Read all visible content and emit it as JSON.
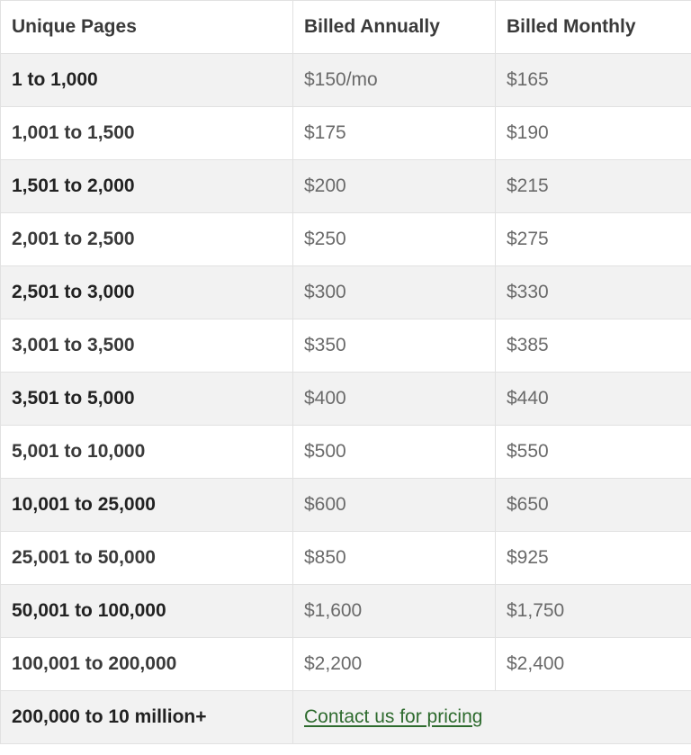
{
  "table": {
    "headers": {
      "pages": "Unique Pages",
      "annually": "Billed Annually",
      "monthly": "Billed Monthly"
    },
    "rows": [
      {
        "pages": "1 to 1,000",
        "annually": "$150/mo",
        "monthly": "$165"
      },
      {
        "pages": "1,001 to 1,500",
        "annually": "$175",
        "monthly": "$190"
      },
      {
        "pages": "1,501 to 2,000",
        "annually": "$200",
        "monthly": "$215"
      },
      {
        "pages": "2,001 to 2,500",
        "annually": "$250",
        "monthly": "$275"
      },
      {
        "pages": "2,501 to 3,000",
        "annually": "$300",
        "monthly": "$330"
      },
      {
        "pages": "3,001 to 3,500",
        "annually": "$350",
        "monthly": "$385"
      },
      {
        "pages": "3,501 to 5,000",
        "annually": "$400",
        "monthly": "$440"
      },
      {
        "pages": "5,001 to 10,000",
        "annually": "$500",
        "monthly": "$550"
      },
      {
        "pages": "10,001 to 25,000",
        "annually": "$600",
        "monthly": "$650"
      },
      {
        "pages": "25,001 to 50,000",
        "annually": "$850",
        "monthly": "$925"
      },
      {
        "pages": "50,001 to 100,000",
        "annually": "$1,600",
        "monthly": "$1,750"
      },
      {
        "pages": "100,001 to 200,000",
        "annually": "$2,200",
        "monthly": "$2,400"
      }
    ],
    "last_row": {
      "pages": "200,000 to 10 million+",
      "contact_link": "Contact us for pricing"
    }
  },
  "colors": {
    "link": "#2e6b2e",
    "stripe": "#f2f2f2",
    "border": "#e1e1e1"
  }
}
